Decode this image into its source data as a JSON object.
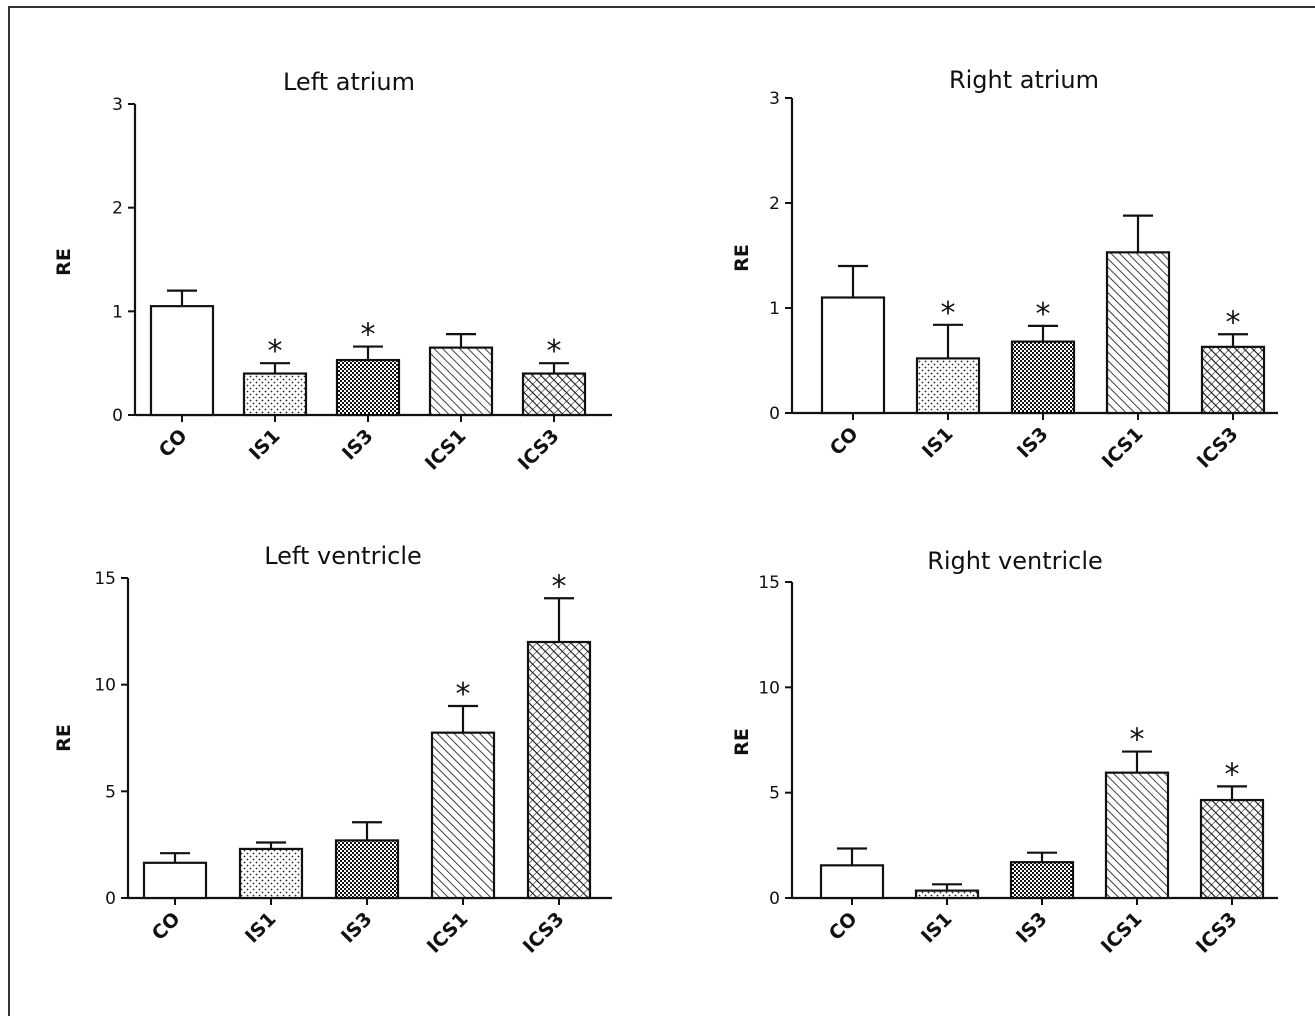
{
  "chart_data": [
    {
      "type": "bar",
      "title": "Left atrium",
      "ylabel": "RE",
      "xlabel": "",
      "ylim": [
        0,
        3
      ],
      "yticks": [
        0,
        1,
        2,
        3
      ],
      "categories": [
        "CO",
        "IS1",
        "IS3",
        "ICS1",
        "ICS3"
      ],
      "values": [
        1.05,
        0.4,
        0.53,
        0.65,
        0.4
      ],
      "errors": [
        0.15,
        0.1,
        0.13,
        0.13,
        0.1
      ],
      "significance": [
        "",
        "*",
        "*",
        "",
        "*"
      ],
      "fill_patterns": [
        "solid-white",
        "dots",
        "dense-checker",
        "diagonal-hatch",
        "crosshatch"
      ],
      "grid": false
    },
    {
      "type": "bar",
      "title": "Right atrium",
      "ylabel": "RE",
      "xlabel": "",
      "ylim": [
        0,
        3
      ],
      "yticks": [
        0,
        1,
        2,
        3
      ],
      "categories": [
        "CO",
        "IS1",
        "IS3",
        "ICS1",
        "ICS3"
      ],
      "values": [
        1.1,
        0.52,
        0.68,
        1.53,
        0.63
      ],
      "errors": [
        0.3,
        0.32,
        0.15,
        0.35,
        0.12
      ],
      "significance": [
        "",
        "*",
        "*",
        "",
        "*"
      ],
      "fill_patterns": [
        "solid-white",
        "dots",
        "dense-checker",
        "diagonal-hatch",
        "crosshatch"
      ],
      "grid": false
    },
    {
      "type": "bar",
      "title": "Left ventricle",
      "ylabel": "RE",
      "xlabel": "",
      "ylim": [
        0,
        15
      ],
      "yticks": [
        0,
        5,
        10,
        15
      ],
      "categories": [
        "CO",
        "IS1",
        "IS3",
        "ICS1",
        "ICS3"
      ],
      "values": [
        1.65,
        2.3,
        2.7,
        7.75,
        12.0
      ],
      "errors": [
        0.45,
        0.3,
        0.85,
        1.25,
        2.05
      ],
      "significance": [
        "",
        "",
        "",
        "*",
        "*"
      ],
      "fill_patterns": [
        "solid-white",
        "dots",
        "dense-checker",
        "diagonal-hatch",
        "crosshatch"
      ],
      "grid": false
    },
    {
      "type": "bar",
      "title": "Right ventricle",
      "ylabel": "RE",
      "xlabel": "",
      "ylim": [
        0,
        15
      ],
      "yticks": [
        0,
        5,
        10,
        15
      ],
      "categories": [
        "CO",
        "IS1",
        "IS3",
        "ICS1",
        "ICS3"
      ],
      "values": [
        1.55,
        0.35,
        1.7,
        5.95,
        4.65
      ],
      "errors": [
        0.8,
        0.3,
        0.45,
        1.0,
        0.65
      ],
      "significance": [
        "",
        "",
        "",
        "*",
        "*"
      ],
      "fill_patterns": [
        "solid-white",
        "dots",
        "dense-checker",
        "diagonal-hatch",
        "crosshatch"
      ],
      "grid": false
    }
  ]
}
